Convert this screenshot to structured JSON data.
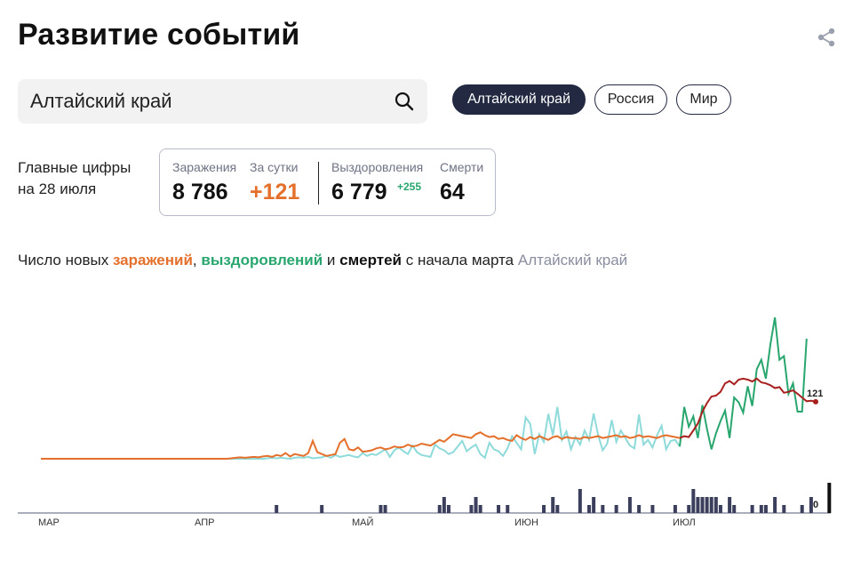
{
  "header": {
    "title": "Развитие событий"
  },
  "search": {
    "value": "Алтайский край"
  },
  "region_tabs": [
    {
      "label": "Алтайский край",
      "active": true
    },
    {
      "label": "Россия",
      "active": false
    },
    {
      "label": "Мир",
      "active": false
    }
  ],
  "main_figures": {
    "label_line1": "Главные цифры",
    "label_line2": "на 28 июля",
    "infections_label": "Заражения",
    "infections_value": "8 786",
    "daily_label": "За сутки",
    "daily_value": "+121",
    "recoveries_label": "Выздоровления",
    "recoveries_value": "6 779",
    "recoveries_delta": "+255",
    "deaths_label": "Смерти",
    "deaths_value": "64"
  },
  "chart_caption": {
    "p1": "Число новых ",
    "infections": "заражений",
    "p2": ", ",
    "recoveries": "выздоровлений",
    "p3": " и ",
    "deaths": "смертей",
    "p4": " с начала марта",
    "region": "Алтайский край"
  },
  "colors": {
    "infections": "#e4702c",
    "infections_recent": "#a8201e",
    "recoveries": "#8fdada",
    "recoveries_recent": "#28a66e",
    "deaths": "#3b3f5c",
    "deaths_last": "#111111",
    "active_tab": "#222940"
  },
  "chart_data": {
    "type": "line",
    "x_ticks": [
      "МАР",
      "АПР",
      "МАЙ",
      "ИЮН",
      "ИЮЛ"
    ],
    "series": [
      {
        "name": "заражений",
        "last_value": 121,
        "values": [
          0,
          0,
          0,
          0,
          0,
          0,
          0,
          0,
          0,
          0,
          0,
          0,
          0,
          0,
          0,
          0,
          0,
          0,
          0,
          0,
          0,
          0,
          0,
          0,
          0,
          0,
          0,
          0,
          0,
          0,
          0,
          0,
          0,
          0,
          0,
          0,
          0,
          0,
          0,
          0,
          0,
          0,
          1,
          2,
          3,
          2,
          3,
          4,
          3,
          5,
          6,
          4,
          8,
          6,
          12,
          5,
          10,
          8,
          6,
          12,
          38,
          14,
          10,
          6,
          8,
          10,
          34,
          42,
          20,
          18,
          24,
          15,
          16,
          18,
          22,
          24,
          20,
          22,
          26,
          24,
          25,
          30,
          26,
          28,
          32,
          30,
          28,
          34,
          40,
          36,
          44,
          52,
          50,
          48,
          46,
          44,
          52,
          56,
          50,
          46,
          48,
          42,
          44,
          40,
          38,
          50,
          44,
          40,
          46,
          42,
          48,
          44,
          40,
          46,
          48,
          42,
          46,
          44,
          44,
          42,
          46,
          44,
          46,
          48,
          44,
          46,
          48,
          50,
          46,
          48,
          44,
          46,
          50,
          46,
          48,
          46,
          44,
          48,
          50,
          48,
          46,
          44,
          48,
          46,
          60,
          75,
          100,
          118,
          132,
          134,
          142,
          160,
          165,
          158,
          168,
          170,
          168,
          164,
          170,
          162,
          160,
          156,
          150,
          152,
          140,
          142,
          145,
          138,
          130,
          122,
          123,
          121
        ]
      },
      {
        "name": "выздоровлений",
        "last_value": 255,
        "values": [
          0,
          0,
          0,
          0,
          0,
          0,
          0,
          0,
          0,
          0,
          0,
          0,
          0,
          0,
          0,
          0,
          0,
          0,
          0,
          0,
          0,
          0,
          0,
          0,
          0,
          0,
          0,
          0,
          0,
          0,
          0,
          0,
          0,
          0,
          0,
          0,
          0,
          0,
          0,
          0,
          0,
          0,
          0,
          0,
          0,
          0,
          0,
          0,
          0,
          0,
          1,
          2,
          1,
          2,
          1,
          0,
          2,
          3,
          2,
          4,
          1,
          2,
          3,
          6,
          2,
          8,
          4,
          6,
          8,
          5,
          3,
          12,
          6,
          10,
          8,
          14,
          20,
          4,
          18,
          24,
          16,
          10,
          28,
          14,
          8,
          6,
          4,
          30,
          22,
          18,
          10,
          14,
          26,
          38,
          16,
          24,
          30,
          10,
          2,
          34,
          20,
          16,
          6,
          22,
          48,
          34,
          20,
          88,
          74,
          10,
          52,
          36,
          95,
          50,
          110,
          40,
          58,
          20,
          46,
          30,
          60,
          40,
          96,
          50,
          18,
          32,
          82,
          36,
          60,
          44,
          28,
          22,
          94,
          30,
          40,
          24,
          50,
          70,
          20,
          38,
          40,
          26,
          110,
          68,
          90,
          44,
          114,
          64,
          20,
          54,
          80,
          102,
          44,
          130,
          120,
          98,
          154,
          112,
          190,
          210,
          170,
          242,
          300,
          210,
          218,
          138,
          160,
          100,
          100,
          255
        ]
      },
      {
        "name": "смертей",
        "last_value": 0,
        "values": [
          0,
          0,
          0,
          0,
          0,
          0,
          0,
          0,
          0,
          0,
          0,
          0,
          0,
          0,
          0,
          0,
          0,
          0,
          0,
          0,
          0,
          0,
          0,
          0,
          0,
          0,
          0,
          0,
          0,
          0,
          0,
          0,
          0,
          0,
          0,
          0,
          0,
          0,
          0,
          0,
          0,
          0,
          0,
          0,
          0,
          0,
          0,
          0,
          0,
          0,
          0,
          0,
          0,
          0,
          0,
          0,
          0,
          0,
          0,
          0,
          0,
          0,
          0,
          0,
          0,
          0,
          0,
          0,
          0,
          0,
          0,
          0,
          0,
          0,
          0,
          0,
          0,
          0,
          0,
          0,
          0,
          0,
          0,
          0,
          0,
          0,
          0,
          0,
          0,
          0,
          0,
          0,
          0,
          0,
          0,
          0,
          0,
          0,
          0,
          0,
          0,
          0,
          0,
          0,
          0,
          0,
          0,
          0,
          0,
          0,
          0,
          0,
          0,
          0,
          0,
          0,
          0,
          0,
          0,
          0,
          0,
          0,
          0,
          0,
          0,
          0,
          0,
          0,
          0,
          0,
          0,
          0,
          0,
          0,
          0,
          0,
          0,
          0,
          0,
          0,
          0,
          0,
          0,
          0,
          0,
          0,
          0,
          0,
          0,
          0,
          0,
          0,
          0,
          0,
          0,
          0,
          0,
          0,
          0,
          0,
          0,
          0,
          0,
          0,
          0,
          0,
          0,
          0,
          0,
          0,
          0,
          0,
          0,
          0,
          0
        ]
      }
    ],
    "death_bars": [
      {
        "day": 52,
        "v": 1
      },
      {
        "day": 62,
        "v": 1
      },
      {
        "day": 75,
        "v": 1
      },
      {
        "day": 76,
        "v": 1
      },
      {
        "day": 88,
        "v": 1
      },
      {
        "day": 89,
        "v": 2
      },
      {
        "day": 90,
        "v": 1
      },
      {
        "day": 95,
        "v": 1
      },
      {
        "day": 96,
        "v": 2
      },
      {
        "day": 97,
        "v": 1
      },
      {
        "day": 101,
        "v": 1
      },
      {
        "day": 103,
        "v": 1
      },
      {
        "day": 111,
        "v": 1
      },
      {
        "day": 113,
        "v": 2
      },
      {
        "day": 114,
        "v": 1
      },
      {
        "day": 119,
        "v": 3
      },
      {
        "day": 121,
        "v": 1
      },
      {
        "day": 122,
        "v": 2
      },
      {
        "day": 124,
        "v": 1
      },
      {
        "day": 127,
        "v": 1
      },
      {
        "day": 130,
        "v": 2
      },
      {
        "day": 132,
        "v": 1
      },
      {
        "day": 135,
        "v": 1
      },
      {
        "day": 140,
        "v": 1
      },
      {
        "day": 143,
        "v": 1
      },
      {
        "day": 144,
        "v": 3
      },
      {
        "day": 145,
        "v": 2
      },
      {
        "day": 146,
        "v": 2
      },
      {
        "day": 147,
        "v": 2
      },
      {
        "day": 148,
        "v": 2
      },
      {
        "day": 149,
        "v": 2
      },
      {
        "day": 150,
        "v": 1
      },
      {
        "day": 152,
        "v": 2
      },
      {
        "day": 153,
        "v": 1
      },
      {
        "day": 157,
        "v": 1
      },
      {
        "day": 159,
        "v": 1
      },
      {
        "day": 160,
        "v": 1
      },
      {
        "day": 162,
        "v": 2
      },
      {
        "day": 164,
        "v": 1
      },
      {
        "day": 168,
        "v": 1
      },
      {
        "day": 170,
        "v": 2
      },
      {
        "day": 174,
        "v": 3
      }
    ]
  },
  "icons": {
    "share": "share-icon",
    "search": "search-icon"
  }
}
